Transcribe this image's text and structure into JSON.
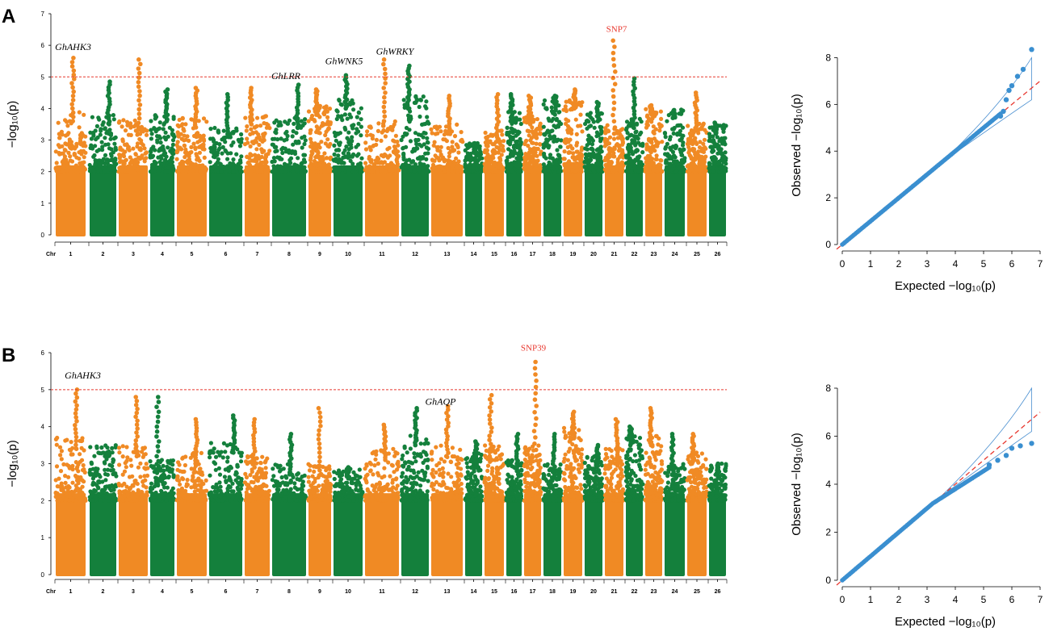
{
  "colors": {
    "orange": "#f08a24",
    "green": "#14803c",
    "threshold": "#e8382f",
    "qq_point": "#3a8fd0",
    "qq_band": "#4a8fd0"
  },
  "panels": [
    {
      "letter": "A",
      "ylabel_m": "−log₁₀(p)",
      "threshold": 5,
      "chr_prefix": "Chr",
      "annotations": [
        {
          "label": "GhAHK3",
          "kind": "gene"
        },
        {
          "label": "GhLRR",
          "kind": "gene"
        },
        {
          "label": "GhWNK5",
          "kind": "gene"
        },
        {
          "label": "GhWRKY",
          "kind": "gene"
        },
        {
          "label": "SNP7",
          "kind": "snp"
        }
      ],
      "qq_xlabel": "Expected  −log₁₀(p)",
      "qq_ylabel": "Observed  −log₁₀(p)"
    },
    {
      "letter": "B",
      "ylabel_m": "−log₁₀(p)",
      "threshold": 5,
      "chr_prefix": "Chr",
      "annotations": [
        {
          "label": "GhAHK3",
          "kind": "gene"
        },
        {
          "label": "GhAQP",
          "kind": "gene"
        },
        {
          "label": "SNP39",
          "kind": "snp"
        }
      ],
      "qq_xlabel": "Expected  −log₁₀(p)",
      "qq_ylabel": "Observed  −log₁₀(p)"
    }
  ],
  "chart_data": [
    {
      "type": "scatter",
      "subtype": "manhattan",
      "panel": "A",
      "title": "",
      "xlabel": "Chr",
      "ylabel": "−log10(p)",
      "ylim": [
        0,
        7
      ],
      "y_ticks": [
        0,
        1,
        2,
        3,
        4,
        5,
        6,
        7
      ],
      "categories": [
        "1",
        "2",
        "3",
        "4",
        "5",
        "6",
        "7",
        "8",
        "9",
        "10",
        "11",
        "12",
        "13",
        "14",
        "15",
        "16",
        "17",
        "18",
        "19",
        "20",
        "21",
        "22",
        "23",
        "24",
        "25",
        "26"
      ],
      "series_baseline_max": [
        3.9,
        3.8,
        3.7,
        3.9,
        3.7,
        3.4,
        3.8,
        3.7,
        4.1,
        4.3,
        3.6,
        4.4,
        3.5,
        2.9,
        3.3,
        3.9,
        3.8,
        4.4,
        4.3,
        3.9,
        3.5,
        3.7,
        4.1,
        4.0,
        3.6,
        3.5
      ],
      "peak_max": [
        5.6,
        4.85,
        5.55,
        4.6,
        4.65,
        4.45,
        4.65,
        4.75,
        4.6,
        5.05,
        5.55,
        5.35,
        4.4,
        2.9,
        4.45,
        4.45,
        4.4,
        4.4,
        4.6,
        4.2,
        6.15,
        4.95,
        4.1,
        3.95,
        4.5,
        3.55
      ],
      "threshold": 5,
      "annotations": [
        {
          "label": "GhAHK3",
          "chr": "1",
          "y": 5.6
        },
        {
          "label": "GhLRR",
          "chr": "8",
          "y": 4.75
        },
        {
          "label": "GhWNK5",
          "chr": "10",
          "y": 5.05
        },
        {
          "label": "GhWRKY",
          "chr": "12",
          "y": 5.35
        },
        {
          "label": "SNP7",
          "chr": "21",
          "y": 6.15
        }
      ]
    },
    {
      "type": "scatter",
      "subtype": "qq",
      "panel": "A",
      "xlabel": "Expected −log10(p)",
      "ylabel": "Observed −log10(p)",
      "xlim": [
        0,
        7
      ],
      "ylim": [
        0,
        8.5
      ],
      "x_ticks": [
        0,
        1,
        2,
        3,
        4,
        5,
        6,
        7
      ],
      "y_ticks": [
        0,
        2,
        4,
        6,
        8
      ],
      "top_points": [
        [
          5.6,
          5.5
        ],
        [
          5.7,
          5.7
        ],
        [
          5.8,
          6.2
        ],
        [
          5.9,
          6.6
        ],
        [
          6.0,
          6.8
        ],
        [
          6.2,
          7.2
        ],
        [
          6.4,
          7.5
        ],
        [
          6.7,
          8.35
        ]
      ],
      "band_upper_end": 8.0,
      "band_lower_end": 6.2
    },
    {
      "type": "scatter",
      "subtype": "manhattan",
      "panel": "B",
      "title": "",
      "xlabel": "Chr",
      "ylabel": "−log10(p)",
      "ylim": [
        0,
        6
      ],
      "y_ticks": [
        0,
        1,
        2,
        3,
        4,
        5,
        6
      ],
      "categories": [
        "1",
        "2",
        "3",
        "4",
        "5",
        "6",
        "7",
        "8",
        "9",
        "10",
        "11",
        "12",
        "13",
        "14",
        "15",
        "16",
        "17",
        "18",
        "19",
        "20",
        "21",
        "22",
        "23",
        "24",
        "25",
        "26"
      ],
      "series_baseline_max": [
        3.7,
        3.5,
        3.5,
        3.1,
        3.3,
        3.6,
        3.2,
        3.0,
        3.0,
        2.9,
        3.4,
        3.8,
        3.5,
        3.3,
        3.5,
        3.1,
        3.5,
        3.0,
        4.0,
        3.2,
        3.4,
        3.8,
        3.8,
        3.0,
        3.3,
        3.0
      ],
      "peak_max": [
        5.0,
        3.3,
        4.8,
        4.8,
        4.2,
        4.3,
        4.2,
        3.8,
        4.5,
        2.9,
        4.05,
        4.5,
        4.55,
        3.6,
        4.85,
        3.8,
        5.75,
        3.8,
        4.4,
        3.5,
        4.2,
        4.0,
        4.5,
        3.8,
        3.8,
        3.0
      ],
      "threshold": 5,
      "annotations": [
        {
          "label": "GhAHK3",
          "chr": "1",
          "y": 5.0
        },
        {
          "label": "GhAQP",
          "chr": "13",
          "y": 4.55
        },
        {
          "label": "SNP39",
          "chr": "17",
          "y": 5.75
        }
      ]
    },
    {
      "type": "scatter",
      "subtype": "qq",
      "panel": "B",
      "xlabel": "Expected −log10(p)",
      "ylabel": "Observed −log10(p)",
      "xlim": [
        0,
        7
      ],
      "ylim": [
        0,
        8
      ],
      "x_ticks": [
        0,
        1,
        2,
        3,
        4,
        5,
        6,
        7
      ],
      "y_ticks": [
        0,
        2,
        4,
        6,
        8
      ],
      "top_points": [
        [
          5.2,
          4.8
        ],
        [
          5.5,
          5.0
        ],
        [
          5.8,
          5.2
        ],
        [
          6.0,
          5.5
        ],
        [
          6.3,
          5.6
        ],
        [
          6.7,
          5.7
        ]
      ],
      "band_upper_end": 8.0,
      "band_lower_end": 6.2
    }
  ]
}
